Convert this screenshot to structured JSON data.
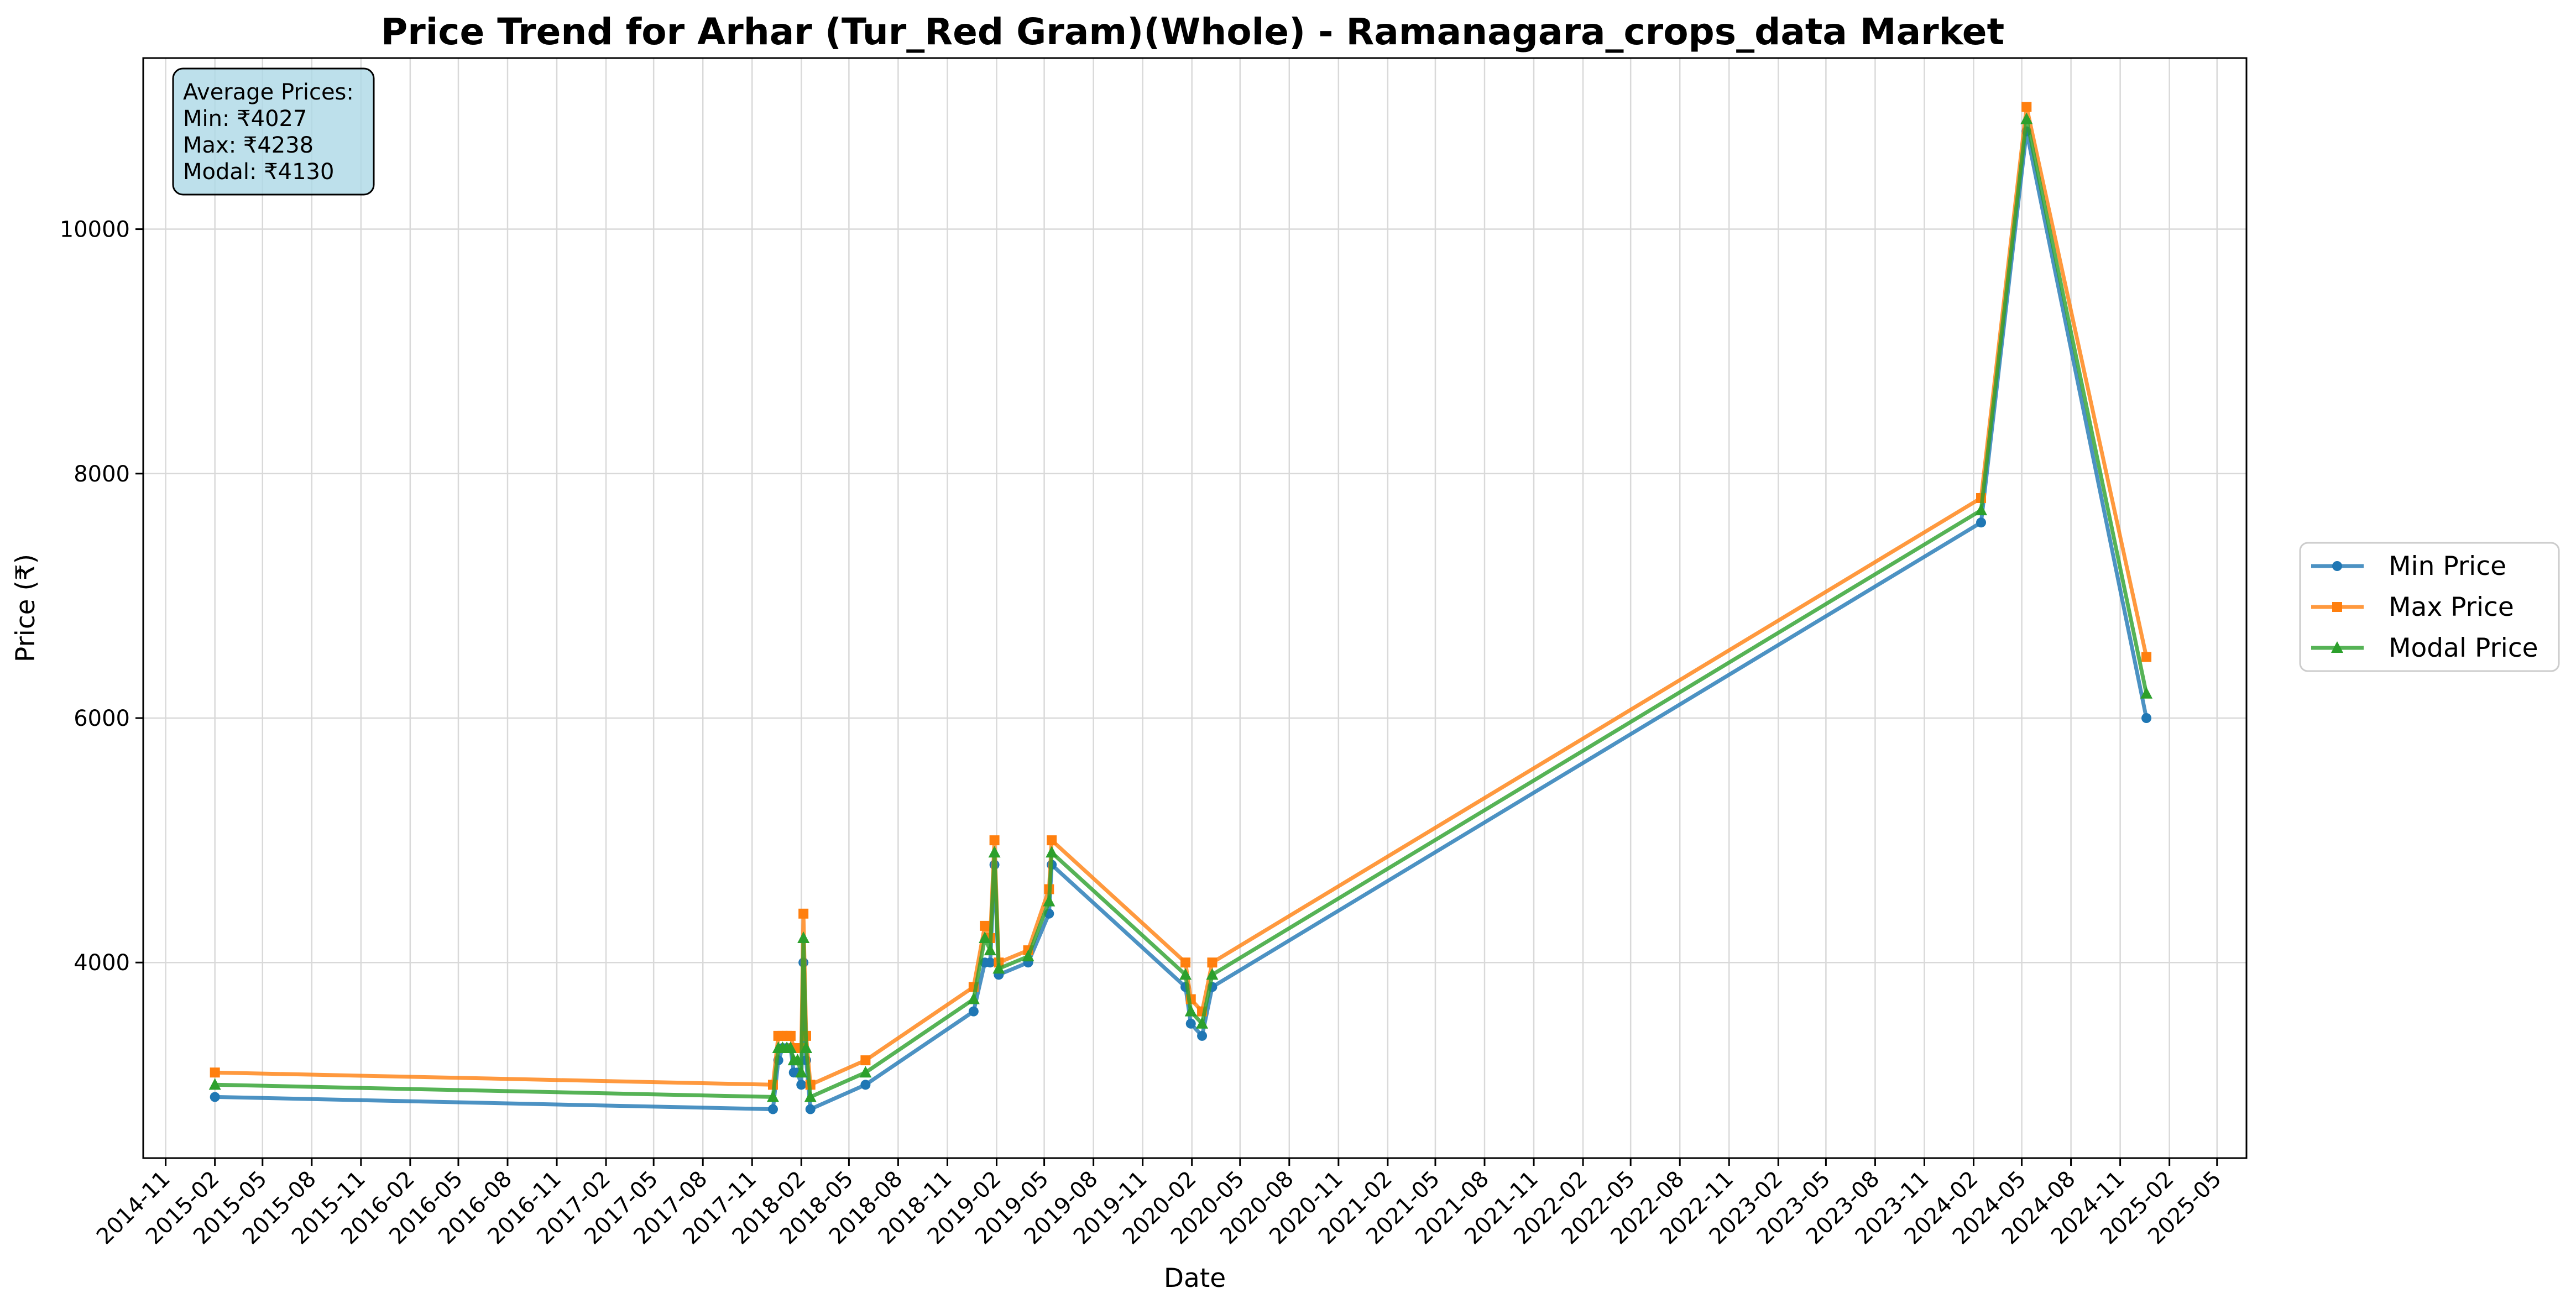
{
  "chart_data": {
    "type": "line",
    "title": "Price Trend for Arhar (Tur_Red Gram)(Whole) - Ramanagara_crops_data Market",
    "xlabel": "Date",
    "ylabel": "Price (₹)",
    "ylim": [
      2400,
      11400
    ],
    "xlim": [
      "2014-09-20",
      "2025-06-25"
    ],
    "yticks": [
      4000,
      6000,
      8000,
      10000
    ],
    "xticks": [
      "2014-11",
      "2015-02",
      "2015-05",
      "2015-08",
      "2015-11",
      "2016-02",
      "2016-05",
      "2016-08",
      "2016-11",
      "2017-02",
      "2017-05",
      "2017-08",
      "2017-11",
      "2018-02",
      "2018-05",
      "2018-08",
      "2018-11",
      "2019-02",
      "2019-05",
      "2019-08",
      "2019-11",
      "2020-02",
      "2020-05",
      "2020-08",
      "2020-11",
      "2021-02",
      "2021-05",
      "2021-08",
      "2021-11",
      "2022-02",
      "2022-05",
      "2022-08",
      "2022-11",
      "2023-02",
      "2023-05",
      "2023-08",
      "2023-11",
      "2024-02",
      "2024-05",
      "2024-08",
      "2024-11",
      "2025-02",
      "2025-05"
    ],
    "grid": true,
    "legend": "outside-right",
    "stats_box": {
      "lines": [
        "Average Prices:",
        "Min: ₹4027",
        "Max: ₹4238",
        "Modal: ₹4130"
      ],
      "background": "#add8e6",
      "placement": "top-left"
    },
    "series": [
      {
        "name": "Min Price",
        "color": "#1f77b4",
        "marker": "circle",
        "points": [
          [
            "2015-02-01",
            2900
          ],
          [
            "2017-12-10",
            2800
          ],
          [
            "2017-12-20",
            3200
          ],
          [
            "2017-12-28",
            3300
          ],
          [
            "2018-01-05",
            3300
          ],
          [
            "2018-01-12",
            3300
          ],
          [
            "2018-01-18",
            3100
          ],
          [
            "2018-01-25",
            3100
          ],
          [
            "2018-02-01",
            3000
          ],
          [
            "2018-02-05",
            4000
          ],
          [
            "2018-02-10",
            3200
          ],
          [
            "2018-02-18",
            2800
          ],
          [
            "2018-06-01",
            3000
          ],
          [
            "2018-12-20",
            3600
          ],
          [
            "2019-01-10",
            4000
          ],
          [
            "2019-01-20",
            4000
          ],
          [
            "2019-01-28",
            4800
          ],
          [
            "2019-02-05",
            3900
          ],
          [
            "2019-04-01",
            4000
          ],
          [
            "2019-05-10",
            4400
          ],
          [
            "2019-05-15",
            4800
          ],
          [
            "2020-01-20",
            3800
          ],
          [
            "2020-01-30",
            3500
          ],
          [
            "2020-02-20",
            3400
          ],
          [
            "2020-03-10",
            3800
          ],
          [
            "2024-02-15",
            7600
          ],
          [
            "2024-05-10",
            10800
          ],
          [
            "2024-12-20",
            6000
          ]
        ]
      },
      {
        "name": "Max Price",
        "color": "#ff7f0e",
        "marker": "square",
        "points": [
          [
            "2015-02-01",
            3100
          ],
          [
            "2017-12-10",
            3000
          ],
          [
            "2017-12-20",
            3400
          ],
          [
            "2017-12-28",
            3400
          ],
          [
            "2018-01-05",
            3400
          ],
          [
            "2018-01-12",
            3400
          ],
          [
            "2018-01-18",
            3300
          ],
          [
            "2018-01-25",
            3300
          ],
          [
            "2018-02-01",
            3300
          ],
          [
            "2018-02-05",
            4400
          ],
          [
            "2018-02-10",
            3400
          ],
          [
            "2018-02-18",
            3000
          ],
          [
            "2018-06-01",
            3200
          ],
          [
            "2018-12-20",
            3800
          ],
          [
            "2019-01-10",
            4300
          ],
          [
            "2019-01-20",
            4200
          ],
          [
            "2019-01-28",
            5000
          ],
          [
            "2019-02-05",
            4000
          ],
          [
            "2019-04-01",
            4100
          ],
          [
            "2019-05-10",
            4600
          ],
          [
            "2019-05-15",
            5000
          ],
          [
            "2020-01-20",
            4000
          ],
          [
            "2020-01-30",
            3700
          ],
          [
            "2020-02-20",
            3600
          ],
          [
            "2020-03-10",
            4000
          ],
          [
            "2024-02-15",
            7800
          ],
          [
            "2024-05-10",
            11000
          ],
          [
            "2024-12-20",
            6500
          ]
        ]
      },
      {
        "name": "Modal Price",
        "color": "#2ca02c",
        "marker": "triangle",
        "points": [
          [
            "2015-02-01",
            3000
          ],
          [
            "2017-12-10",
            2900
          ],
          [
            "2017-12-20",
            3300
          ],
          [
            "2017-12-28",
            3300
          ],
          [
            "2018-01-05",
            3300
          ],
          [
            "2018-01-12",
            3300
          ],
          [
            "2018-01-18",
            3200
          ],
          [
            "2018-01-25",
            3200
          ],
          [
            "2018-02-01",
            3100
          ],
          [
            "2018-02-05",
            4200
          ],
          [
            "2018-02-10",
            3300
          ],
          [
            "2018-02-18",
            2900
          ],
          [
            "2018-06-01",
            3100
          ],
          [
            "2018-12-20",
            3700
          ],
          [
            "2019-01-10",
            4200
          ],
          [
            "2019-01-20",
            4100
          ],
          [
            "2019-01-28",
            4900
          ],
          [
            "2019-02-05",
            3950
          ],
          [
            "2019-04-01",
            4050
          ],
          [
            "2019-05-10",
            4500
          ],
          [
            "2019-05-15",
            4900
          ],
          [
            "2020-01-20",
            3900
          ],
          [
            "2020-01-30",
            3600
          ],
          [
            "2020-02-20",
            3500
          ],
          [
            "2020-03-10",
            3900
          ],
          [
            "2024-02-15",
            7700
          ],
          [
            "2024-05-10",
            10900
          ],
          [
            "2024-12-20",
            6200
          ]
        ]
      }
    ]
  }
}
